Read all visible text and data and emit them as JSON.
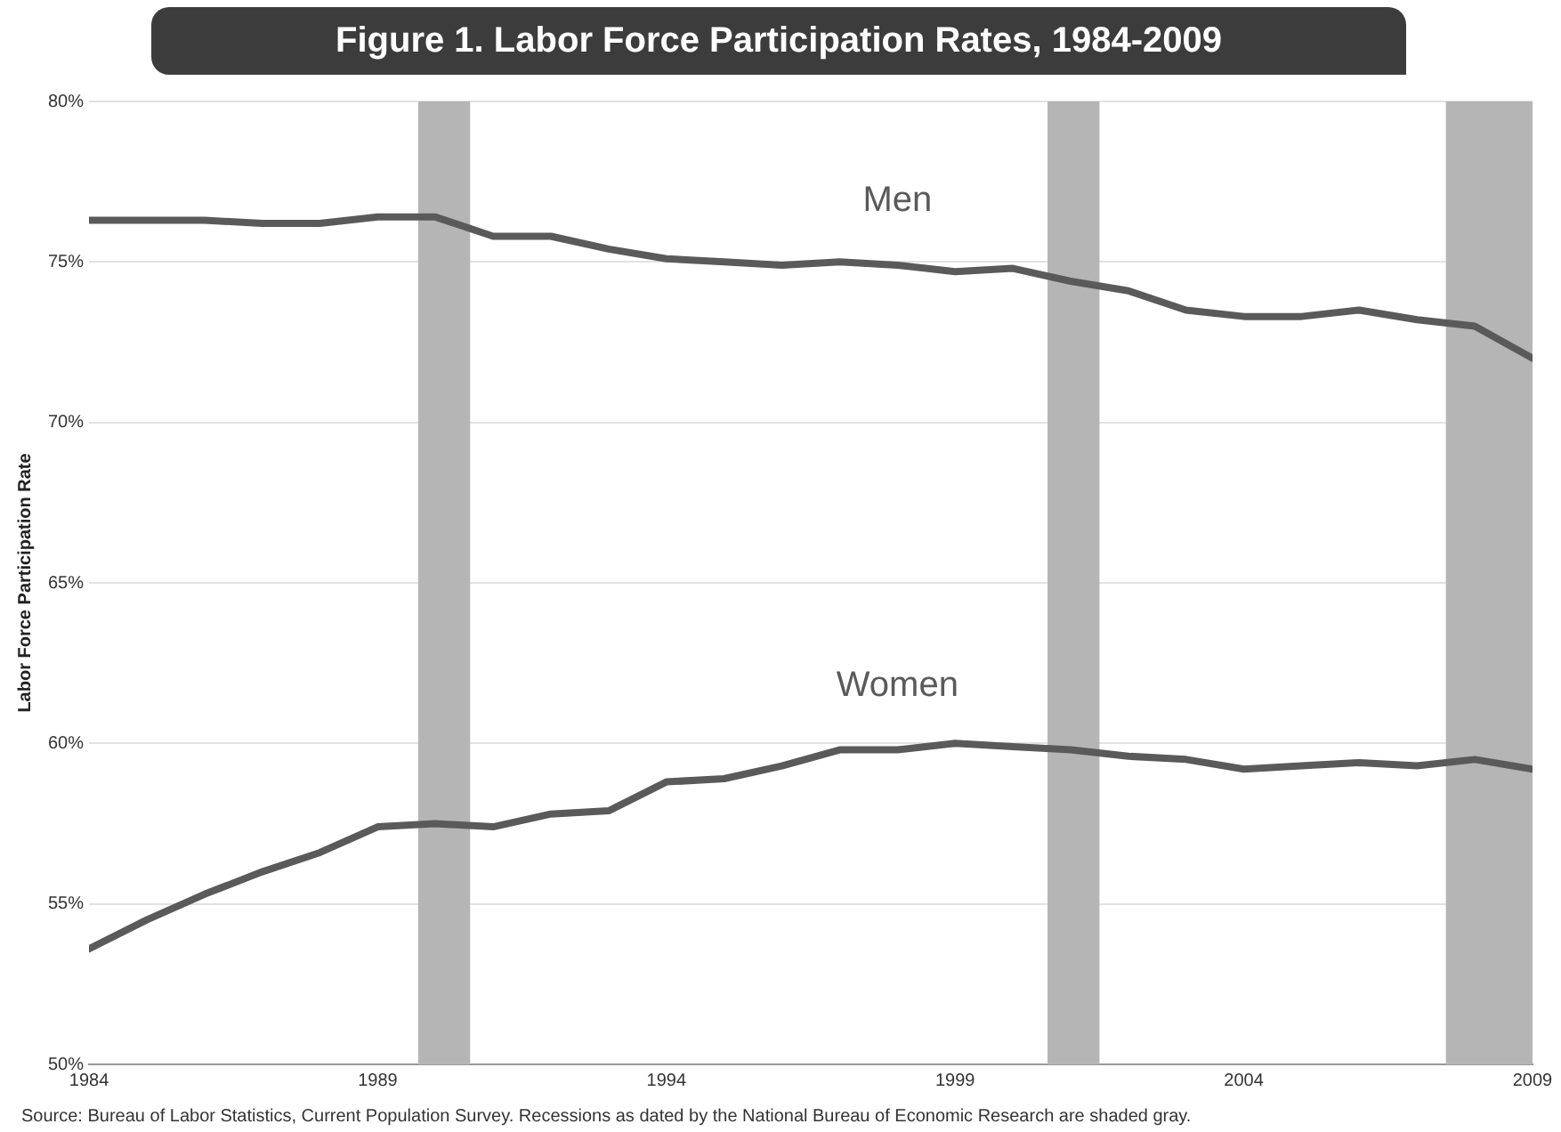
{
  "chart_data": {
    "type": "line",
    "title": "Figure 1. Labor Force Participation Rates, 1984-2009",
    "ylabel": "Labor Force Participation Rate",
    "x": [
      1984,
      1985,
      1986,
      1987,
      1988,
      1989,
      1990,
      1991,
      1992,
      1993,
      1994,
      1995,
      1996,
      1997,
      1998,
      1999,
      2000,
      2001,
      2002,
      2003,
      2004,
      2005,
      2006,
      2007,
      2008,
      2009
    ],
    "series": [
      {
        "name": "Men",
        "color": "#5a5a5a",
        "values": [
          76.3,
          76.3,
          76.3,
          76.2,
          76.2,
          76.4,
          76.4,
          75.8,
          75.8,
          75.4,
          75.1,
          75.0,
          74.9,
          75.0,
          74.9,
          74.7,
          74.8,
          74.4,
          74.1,
          73.5,
          73.3,
          73.3,
          73.5,
          73.2,
          73.0,
          72.0
        ]
      },
      {
        "name": "Women",
        "color": "#5a5a5a",
        "values": [
          53.6,
          54.5,
          55.3,
          56.0,
          56.6,
          57.4,
          57.5,
          57.4,
          57.8,
          57.9,
          58.8,
          58.9,
          59.3,
          59.8,
          59.8,
          60.0,
          59.9,
          59.8,
          59.6,
          59.5,
          59.2,
          59.3,
          59.4,
          59.3,
          59.5,
          59.2
        ]
      }
    ],
    "xlim": [
      1984,
      2009
    ],
    "xticks": [
      1984,
      1989,
      1994,
      1999,
      2004,
      2009
    ],
    "ylim": [
      50,
      80
    ],
    "yticks": [
      {
        "value": 50,
        "label": "50%"
      },
      {
        "value": 55,
        "label": "55%"
      },
      {
        "value": 60,
        "label": "60%"
      },
      {
        "value": 65,
        "label": "65%"
      },
      {
        "value": 70,
        "label": "70%"
      },
      {
        "value": 75,
        "label": "75%"
      },
      {
        "value": 80,
        "label": "80%"
      }
    ],
    "bands": [
      {
        "axis": "x",
        "from": 1989.7,
        "to": 1990.6,
        "color": "#b5b5b5"
      },
      {
        "axis": "x",
        "from": 2000.6,
        "to": 2001.5,
        "color": "#b5b5b5"
      },
      {
        "axis": "x",
        "from": 2007.5,
        "to": 2009,
        "color": "#b5b5b5"
      }
    ],
    "grid": "y",
    "legend": false,
    "marker": "none",
    "line_style": "solid",
    "annotations": [
      "Source: Bureau of Labor Statistics, Current Population Survey. Recessions as dated by the National Bureau of Economic Research are shaded gray."
    ]
  }
}
